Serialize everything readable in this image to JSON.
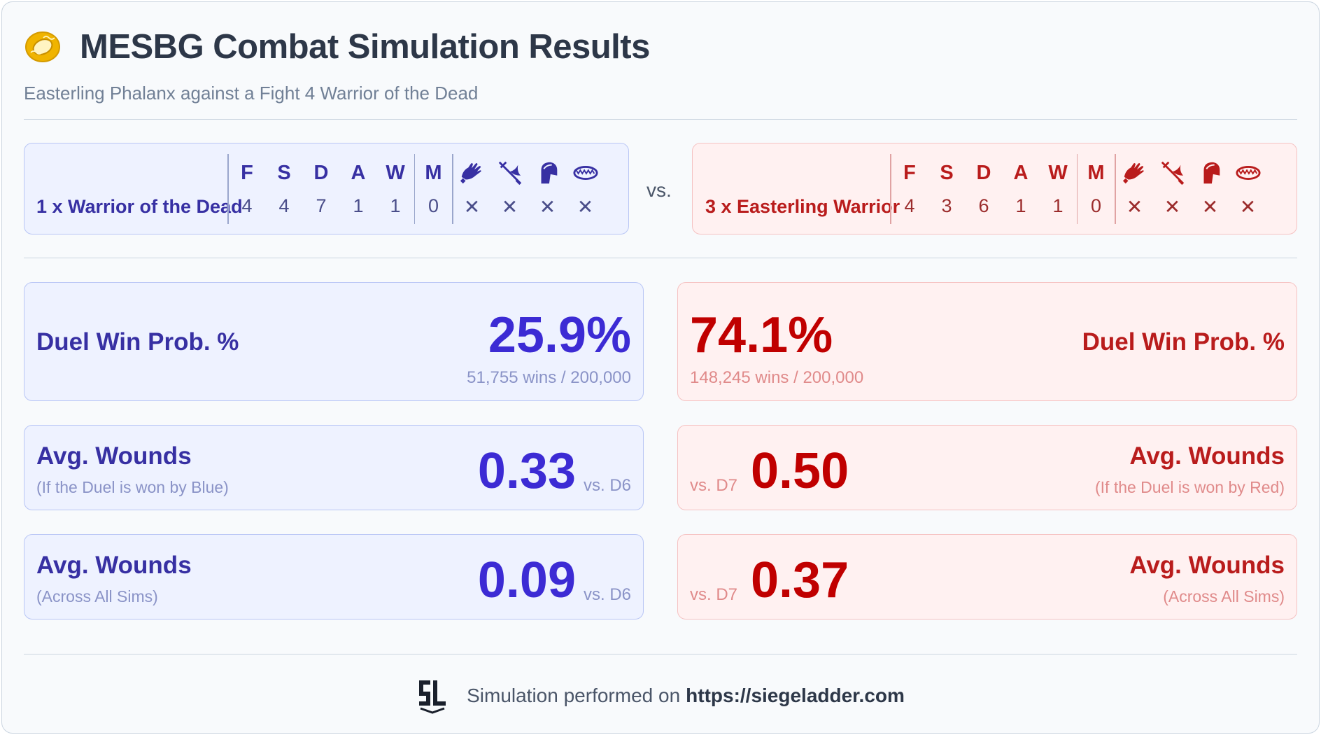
{
  "header": {
    "icon": "ring-icon",
    "title": "MESBG Combat Simulation Results",
    "subtitle": "Easterling Phalanx against a Fight 4 Warrior of the Dead"
  },
  "blue_unit": {
    "name": "1 x Warrior of the Dead",
    "stats": [
      {
        "label": "F",
        "value": "4"
      },
      {
        "label": "S",
        "value": "4"
      },
      {
        "label": "D",
        "value": "7"
      },
      {
        "label": "A",
        "value": "1"
      },
      {
        "label": "W",
        "value": "1"
      },
      {
        "label": "M",
        "value": "0"
      }
    ],
    "special": [
      {
        "icon": "hands-icon",
        "value": "✕"
      },
      {
        "icon": "crossed-weapons-icon",
        "value": "✕"
      },
      {
        "icon": "shield-icon",
        "value": "✕"
      },
      {
        "icon": "bear-trap-icon",
        "value": "✕"
      }
    ]
  },
  "vs_label": "vs.",
  "red_unit": {
    "name": "3 x Easterling Warrior",
    "stats": [
      {
        "label": "F",
        "value": "4"
      },
      {
        "label": "S",
        "value": "3"
      },
      {
        "label": "D",
        "value": "6"
      },
      {
        "label": "A",
        "value": "1"
      },
      {
        "label": "W",
        "value": "1"
      },
      {
        "label": "M",
        "value": "0"
      }
    ],
    "special": [
      {
        "icon": "hands-icon",
        "value": "✕"
      },
      {
        "icon": "crossed-weapons-icon",
        "value": "✕"
      },
      {
        "icon": "shield-icon",
        "value": "✕"
      },
      {
        "icon": "bear-trap-icon",
        "value": "✕"
      }
    ]
  },
  "results": {
    "blue": {
      "duel_label": "Duel Win Prob. %",
      "duel_value": "25.9%",
      "duel_detail": "51,755 wins / 200,000",
      "won_label": "Avg. Wounds",
      "won_sub": "(If the Duel is won by Blue)",
      "won_value": "0.33",
      "won_vs": "vs. D6",
      "all_label": "Avg. Wounds",
      "all_sub": "(Across All Sims)",
      "all_value": "0.09",
      "all_vs": "vs. D6"
    },
    "red": {
      "duel_label": "Duel Win Prob. %",
      "duel_value": "74.1%",
      "duel_detail": "148,245 wins / 200,000",
      "won_label": "Avg. Wounds",
      "won_sub": "(If the Duel is won by Red)",
      "won_value": "0.50",
      "won_vs": "vs. D7",
      "all_label": "Avg. Wounds",
      "all_sub": "(Across All Sims)",
      "all_value": "0.37",
      "all_vs": "vs. D7"
    }
  },
  "footer": {
    "logo": "siege-ladder-logo",
    "text": "Simulation performed on",
    "link": "https://siegeladder.com"
  },
  "colors": {
    "blue_accent": "#3c2bd4",
    "red_accent": "#c00000",
    "blue_bg": "#eef2ff",
    "red_bg": "#fff1f1"
  }
}
